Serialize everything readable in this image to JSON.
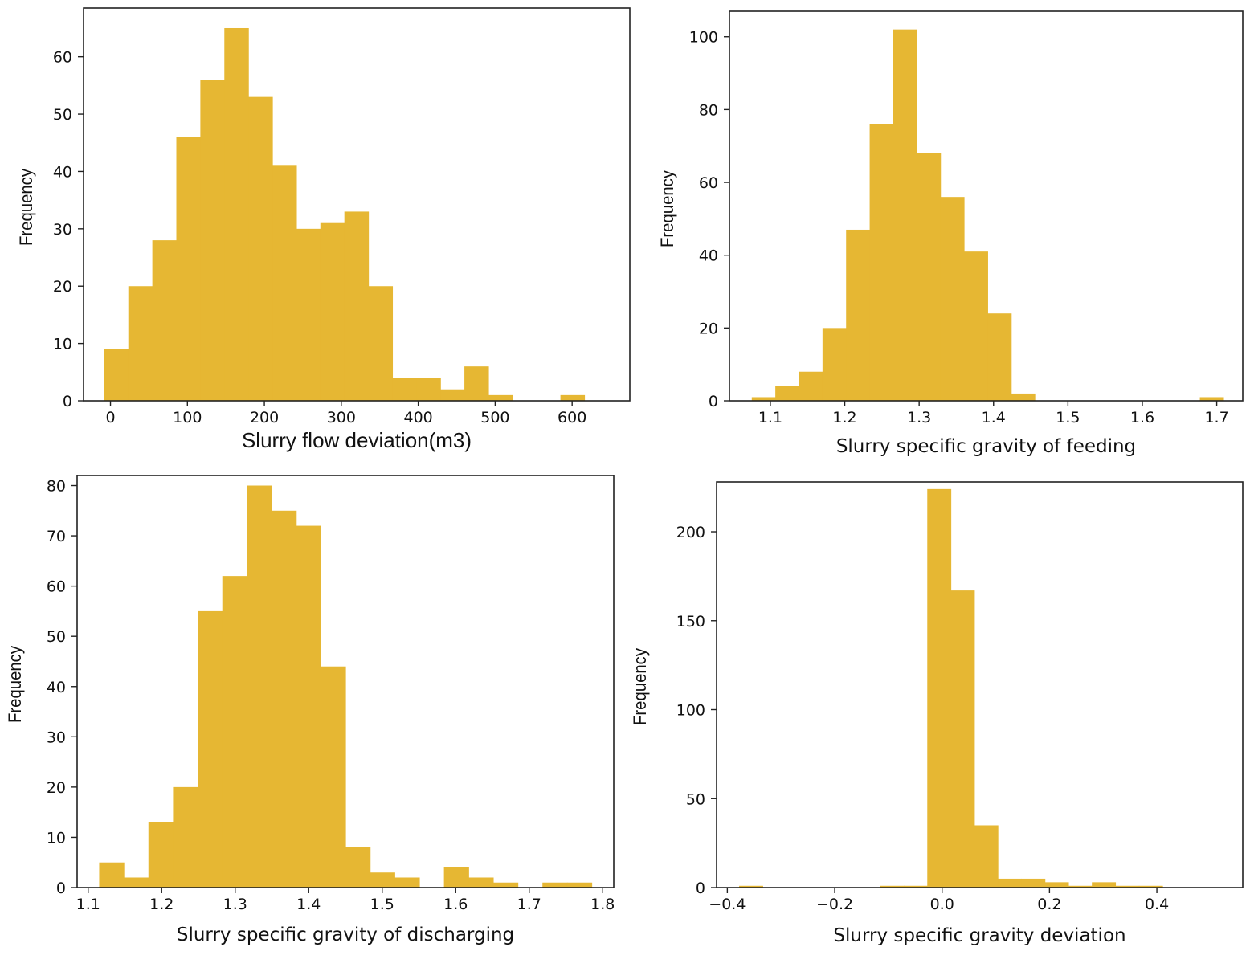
{
  "bar_color": "#E6B733",
  "chart_data": [
    {
      "type": "bar",
      "xlabel": "Slurry flow deviation(m3)",
      "ylabel": "Frequency",
      "xlim": [
        -35,
        675
      ],
      "ylim": [
        0,
        68.5
      ],
      "xticks": [
        0,
        100,
        200,
        300,
        400,
        500,
        600
      ],
      "yticks": [
        0,
        10,
        20,
        30,
        40,
        50,
        60
      ],
      "bin_start": -8,
      "bin_width": 31.2,
      "values": [
        9,
        20,
        28,
        46,
        56,
        65,
        53,
        41,
        30,
        31,
        33,
        20,
        4,
        4,
        2,
        6,
        1,
        0,
        0,
        1
      ]
    },
    {
      "type": "bar",
      "xlabel": "Slurry specific gravity of feeding",
      "ylabel": "Frequency",
      "xlim": [
        1.045,
        1.735
      ],
      "ylim": [
        0,
        107
      ],
      "xticks": [
        1.1,
        1.2,
        1.3,
        1.4,
        1.5,
        1.6,
        1.7
      ],
      "yticks": [
        0,
        20,
        40,
        60,
        80,
        100
      ],
      "bin_start": 1.075,
      "bin_width": 0.0317,
      "values": [
        1,
        4,
        8,
        20,
        47,
        76,
        102,
        68,
        56,
        41,
        24,
        2,
        0,
        0,
        0,
        0,
        0,
        0,
        0,
        1
      ]
    },
    {
      "type": "bar",
      "xlabel": "Slurry specific gravity of discharging",
      "ylabel": "Frequency",
      "xlim": [
        1.085,
        1.815
      ],
      "ylim": [
        0,
        82
      ],
      "xticks": [
        1.1,
        1.2,
        1.3,
        1.4,
        1.5,
        1.6,
        1.7,
        1.8
      ],
      "yticks": [
        0,
        10,
        20,
        30,
        40,
        50,
        60,
        70,
        80
      ],
      "bin_start": 1.115,
      "bin_width": 0.0335,
      "values": [
        5,
        2,
        13,
        20,
        55,
        62,
        80,
        75,
        72,
        44,
        8,
        3,
        2,
        0,
        4,
        2,
        1,
        0,
        1,
        1
      ]
    },
    {
      "type": "bar",
      "xlabel": "Slurry specific gravity deviation",
      "ylabel": "Frequency",
      "xlim": [
        -0.42,
        0.56
      ],
      "ylim": [
        0,
        228
      ],
      "xticks": [
        -0.4,
        -0.2,
        0.0,
        0.2,
        0.4
      ],
      "xtick_labels": [
        "−0.4",
        "−0.2",
        "0.0",
        "0.2",
        "0.4"
      ],
      "yticks": [
        0,
        50,
        100,
        150,
        200
      ],
      "bin_start": -0.378,
      "bin_width": 0.0438,
      "values": [
        1,
        0,
        0,
        0,
        0,
        0,
        1,
        1,
        224,
        167,
        35,
        5,
        5,
        3,
        1,
        3,
        1,
        1,
        0,
        0
      ]
    }
  ]
}
